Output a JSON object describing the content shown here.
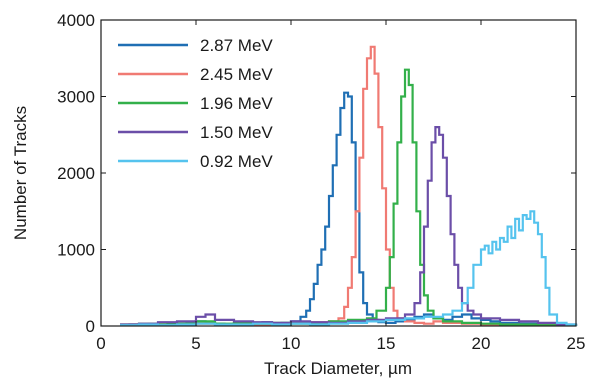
{
  "chart_data": {
    "type": "line",
    "title": "",
    "xlabel": "Track Diameter, µm",
    "ylabel": "Number of Tracks",
    "xlim": [
      0,
      25
    ],
    "ylim": [
      0,
      4000
    ],
    "xticks": [
      0,
      5,
      10,
      15,
      20,
      25
    ],
    "yticks": [
      0,
      1000,
      2000,
      3000,
      4000
    ],
    "grid": false,
    "legend_position": "top-left",
    "series": [
      {
        "name": "2.87 MeV",
        "color": "#1f6fb4",
        "x": [
          1,
          1.5,
          2,
          2.5,
          3,
          3.5,
          4,
          4.5,
          5,
          5.5,
          6,
          6.5,
          7,
          7.5,
          8,
          8.5,
          9,
          9.5,
          10,
          10.5,
          10.8,
          11,
          11.2,
          11.4,
          11.6,
          11.8,
          12,
          12.2,
          12.4,
          12.6,
          12.8,
          13,
          13.2,
          13.4,
          13.6,
          13.8,
          14,
          14.3,
          14.6,
          15,
          15.5,
          16,
          16.5,
          17,
          17.5,
          18,
          18.5,
          19,
          19.5,
          20,
          20.5,
          21,
          22,
          23,
          24,
          25
        ],
        "y": [
          10,
          20,
          15,
          30,
          20,
          40,
          20,
          30,
          60,
          40,
          30,
          20,
          40,
          30,
          20,
          50,
          30,
          40,
          60,
          120,
          200,
          350,
          550,
          800,
          1000,
          1300,
          1700,
          2100,
          2500,
          2850,
          3050,
          3000,
          2400,
          1500,
          700,
          300,
          150,
          80,
          50,
          40,
          60,
          80,
          120,
          150,
          100,
          80,
          120,
          150,
          100,
          80,
          60,
          40,
          30,
          20,
          10,
          0
        ]
      },
      {
        "name": "2.45 MeV",
        "color": "#f07a73",
        "x": [
          1,
          2,
          3,
          4,
          5,
          6,
          7,
          8,
          9,
          10,
          11,
          12,
          12.5,
          12.8,
          13,
          13.2,
          13.4,
          13.6,
          13.8,
          14,
          14.2,
          14.4,
          14.6,
          14.8,
          15,
          15.2,
          15.4,
          15.6,
          16,
          16.5,
          17,
          17.5,
          18,
          19,
          20,
          21,
          22,
          23,
          24,
          25
        ],
        "y": [
          10,
          20,
          10,
          20,
          30,
          20,
          30,
          20,
          30,
          40,
          50,
          60,
          100,
          250,
          500,
          900,
          1500,
          2200,
          3100,
          3500,
          3650,
          3300,
          2600,
          1800,
          1000,
          500,
          200,
          100,
          60,
          40,
          30,
          60,
          40,
          30,
          20,
          20,
          10,
          10,
          10,
          0
        ]
      },
      {
        "name": "1.96 MeV",
        "color": "#33b04a",
        "x": [
          1,
          2,
          3,
          4,
          5,
          6,
          7,
          8,
          9,
          10,
          11,
          12,
          13,
          14,
          14.5,
          15,
          15.2,
          15.4,
          15.6,
          15.8,
          16,
          16.2,
          16.4,
          16.6,
          16.8,
          17,
          17.2,
          17.5,
          18,
          19,
          20,
          21,
          22,
          23,
          24,
          25
        ],
        "y": [
          20,
          30,
          20,
          30,
          60,
          30,
          40,
          30,
          40,
          30,
          40,
          60,
          80,
          100,
          200,
          500,
          900,
          1600,
          2400,
          3000,
          3350,
          3150,
          2400,
          1500,
          800,
          400,
          200,
          100,
          60,
          40,
          30,
          20,
          20,
          10,
          10,
          0
        ]
      },
      {
        "name": "1.50 MeV",
        "color": "#6b4ea8",
        "x": [
          1,
          2,
          3,
          4,
          5,
          5.5,
          6,
          7,
          8,
          9,
          10,
          11,
          12,
          13,
          14,
          15,
          16,
          16.5,
          16.8,
          17,
          17.2,
          17.4,
          17.6,
          17.8,
          18,
          18.2,
          18.4,
          18.6,
          18.8,
          19,
          19.3,
          19.6,
          20,
          21,
          22,
          23,
          24,
          25
        ],
        "y": [
          20,
          30,
          50,
          60,
          120,
          150,
          80,
          60,
          50,
          40,
          60,
          50,
          40,
          60,
          80,
          100,
          150,
          300,
          700,
          1300,
          1900,
          2400,
          2600,
          2500,
          2200,
          1700,
          1200,
          800,
          500,
          300,
          200,
          150,
          100,
          80,
          60,
          40,
          20,
          0
        ]
      },
      {
        "name": "0.92 MeV",
        "color": "#55c3ee",
        "x": [
          1,
          2,
          3,
          4,
          5,
          6,
          7,
          8,
          9,
          10,
          11,
          12,
          13,
          14,
          15,
          16,
          17,
          18,
          18.5,
          19,
          19.3,
          19.6,
          20,
          20.2,
          20.4,
          20.6,
          20.8,
          21,
          21.2,
          21.4,
          21.6,
          21.8,
          22,
          22.2,
          22.4,
          22.6,
          22.8,
          23,
          23.2,
          23.4,
          23.6,
          24,
          24.5,
          25
        ],
        "y": [
          10,
          20,
          10,
          20,
          30,
          20,
          20,
          30,
          20,
          30,
          20,
          30,
          40,
          60,
          80,
          100,
          120,
          150,
          200,
          300,
          500,
          800,
          1000,
          1050,
          950,
          1100,
          1000,
          1150,
          1100,
          1300,
          1150,
          1400,
          1250,
          1450,
          1400,
          1500,
          1350,
          1200,
          900,
          500,
          150,
          40,
          20,
          0
        ]
      }
    ]
  }
}
